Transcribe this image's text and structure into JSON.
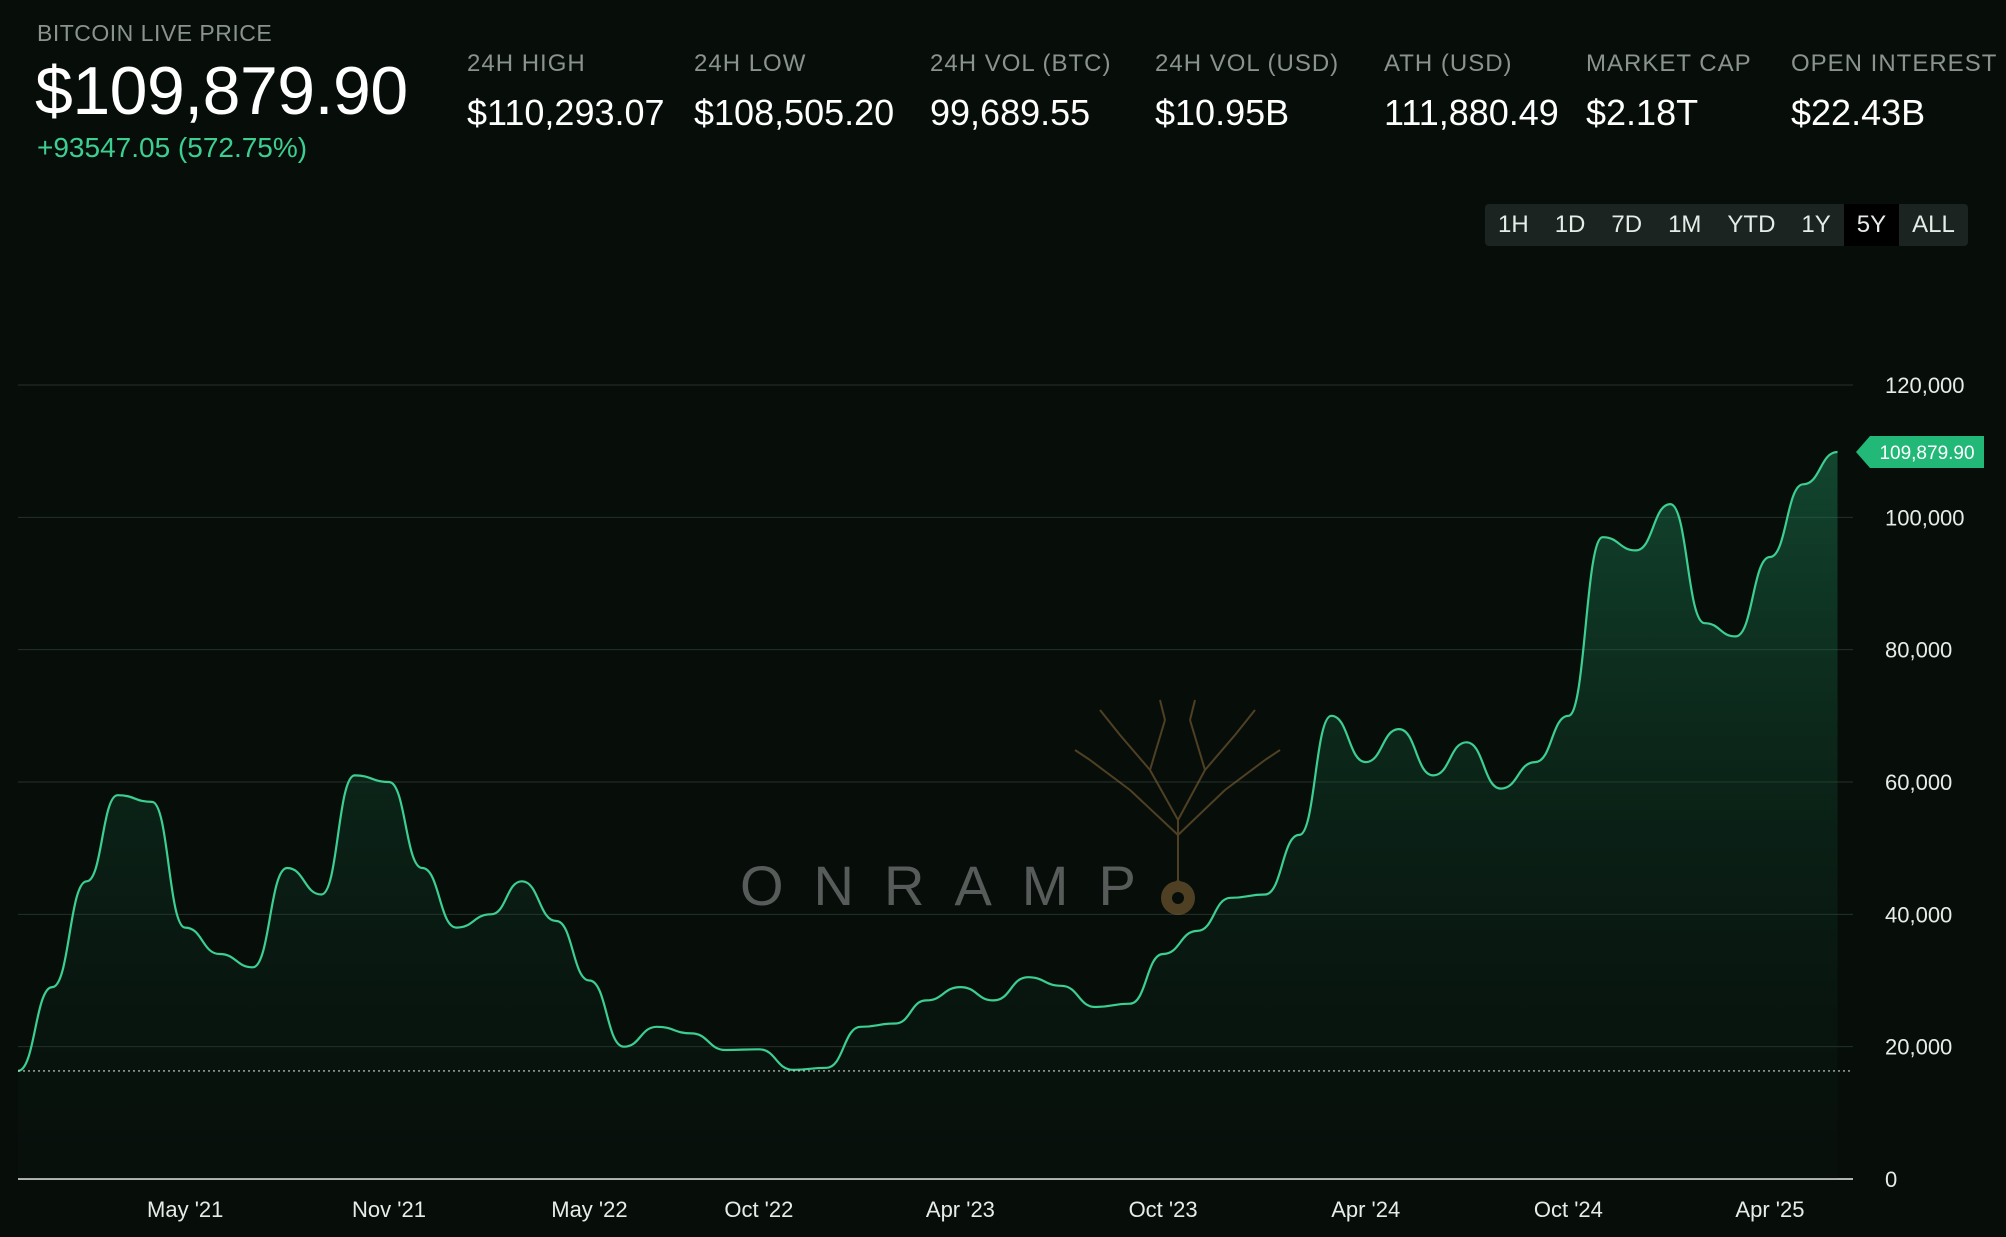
{
  "header": {
    "live_label": "BITCOIN LIVE PRICE",
    "price": "$109,879.90",
    "change": "+93547.05 (572.75%)"
  },
  "stats": [
    {
      "label": "24H HIGH",
      "value": "$110,293.07"
    },
    {
      "label": "24H LOW",
      "value": "$108,505.20"
    },
    {
      "label": "24H VOL (BTC)",
      "value": "99,689.55"
    },
    {
      "label": "24H VOL (USD)",
      "value": "$10.95B"
    },
    {
      "label": "ATH (USD)",
      "value": "111,880.49"
    },
    {
      "label": "MARKET CAP",
      "value": "$2.18T"
    },
    {
      "label": "OPEN INTEREST",
      "value": "$22.43B"
    }
  ],
  "timeframes": {
    "options": [
      "1H",
      "1D",
      "7D",
      "1M",
      "YTD",
      "1Y",
      "5Y",
      "ALL"
    ],
    "selected": "5Y"
  },
  "watermark": {
    "text": "ONRAMP"
  },
  "colors": {
    "background": "#070e0a",
    "line": "#3ccf91",
    "price_tag": "#22b877",
    "positive": "#3ccf91",
    "muted": "#8a938e"
  },
  "chart_data": {
    "type": "area",
    "series": [
      {
        "x": [
          "2020-12",
          "2021-01",
          "2021-02",
          "2021-03",
          "2021-04",
          "2021-05",
          "2021-06",
          "2021-07",
          "2021-08",
          "2021-09",
          "2021-10",
          "2021-11",
          "2021-12",
          "2022-01",
          "2022-02",
          "2022-03",
          "2022-04",
          "2022-05",
          "2022-06",
          "2022-07",
          "2022-08",
          "2022-09",
          "2022-10",
          "2022-11",
          "2022-12",
          "2023-01",
          "2023-02",
          "2023-03",
          "2023-04",
          "2023-05",
          "2023-06",
          "2023-07",
          "2023-08",
          "2023-09",
          "2023-10",
          "2023-11",
          "2023-12",
          "2024-01",
          "2024-02",
          "2024-03",
          "2024-04",
          "2024-05",
          "2024-06",
          "2024-07",
          "2024-08",
          "2024-09",
          "2024-10",
          "2024-11",
          "2024-12",
          "2025-01",
          "2025-02",
          "2025-03",
          "2025-04",
          "2025-05",
          "2025-06"
        ],
        "values": [
          16332,
          29000,
          45000,
          58000,
          57000,
          38000,
          34000,
          32000,
          47000,
          43000,
          61000,
          60000,
          47000,
          38000,
          40000,
          45000,
          39000,
          30000,
          20000,
          23000,
          22000,
          19500,
          19600,
          16500,
          16800,
          23000,
          23500,
          27000,
          29000,
          27000,
          30500,
          29200,
          26000,
          26500,
          34000,
          37500,
          42500,
          43000,
          52000,
          70000,
          63000,
          68000,
          61000,
          66000,
          59000,
          63000,
          70000,
          97000,
          95000,
          102000,
          84000,
          82000,
          94000,
          105000,
          109880
        ]
      }
    ],
    "xticks": [
      "May '21",
      "Nov '21",
      "May '22",
      "Oct '22",
      "Apr '23",
      "Oct '23",
      "Apr '24",
      "Oct '24",
      "Apr '25"
    ],
    "yticks": [
      0,
      20000,
      40000,
      60000,
      80000,
      100000,
      120000
    ],
    "ytick_labels": [
      "0",
      "20,000",
      "40,000",
      "60,000",
      "80,000",
      "100,000",
      "120,000"
    ],
    "ylim": [
      0,
      120000
    ],
    "grid": true,
    "baseline_value": 16332,
    "current_value": 109879.9,
    "current_label": "109,879.90"
  }
}
